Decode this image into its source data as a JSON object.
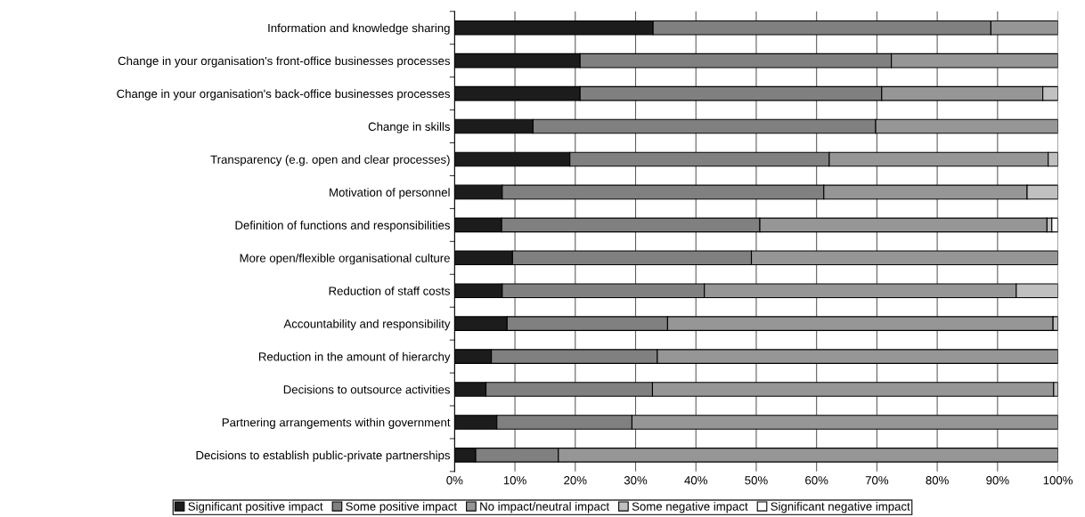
{
  "chart_data": {
    "type": "bar",
    "orientation": "horizontal",
    "stacked": true,
    "categories": [
      "Information and knowledge sharing",
      "Change in your organisation's front-office businesses processes",
      "Change in your organisation's back-office businesses processes",
      "Change in skills",
      "Transparency (e.g. open and clear processes)",
      "Motivation of personnel",
      "Definition of functions and responsibilities",
      "More open/flexible organisational culture",
      "Reduction of staff costs",
      "Accountability and responsibility",
      "Reduction in the amount of hierarchy",
      "Decisions to outsource activities",
      "Partnering arrangements within government",
      "Decisions to establish public-private partnerships"
    ],
    "series": [
      {
        "name": "Significant positive impact",
        "color": "#1c1c1c",
        "values": [
          32.9,
          20.8,
          20.8,
          13.0,
          19.1,
          7.9,
          7.8,
          9.6,
          7.9,
          8.7,
          6.1,
          5.2,
          7.0,
          3.5
        ]
      },
      {
        "name": "Some positive impact",
        "color": "#808080",
        "values": [
          56.0,
          51.6,
          50.0,
          56.8,
          43.0,
          53.3,
          42.8,
          39.6,
          33.5,
          26.6,
          27.5,
          27.6,
          22.4,
          13.7
        ]
      },
      {
        "name": "No impact/neutral impact",
        "color": "#969696",
        "values": [
          11.1,
          27.6,
          26.7,
          30.2,
          36.3,
          33.7,
          47.6,
          50.8,
          51.7,
          63.9,
          66.4,
          66.5,
          70.6,
          82.8
        ]
      },
      {
        "name": "Some negative impact",
        "color": "#c0c0c0",
        "values": [
          null,
          null,
          2.5,
          null,
          1.6,
          5.1,
          0.8,
          null,
          6.9,
          0.8,
          null,
          0.7,
          null,
          null
        ]
      },
      {
        "name": "Significant negative impact",
        "color": "#ffffff",
        "values": [
          null,
          null,
          null,
          null,
          null,
          null,
          1.0,
          null,
          null,
          null,
          null,
          null,
          null,
          null
        ]
      }
    ],
    "xlim": [
      0,
      100
    ],
    "xticks": [
      {
        "value": 0,
        "label": "0%"
      },
      {
        "value": 10,
        "label": "10%"
      },
      {
        "value": 20,
        "label": "20%"
      },
      {
        "value": 30,
        "label": "30%"
      },
      {
        "value": 40,
        "label": "40%"
      },
      {
        "value": 50,
        "label": "50%"
      },
      {
        "value": 60,
        "label": "60%"
      },
      {
        "value": 70,
        "label": "70%"
      },
      {
        "value": 80,
        "label": "80%"
      },
      {
        "value": 90,
        "label": "90%"
      },
      {
        "value": 100,
        "label": "100%"
      }
    ],
    "grid": "x",
    "legend": "bottom"
  }
}
